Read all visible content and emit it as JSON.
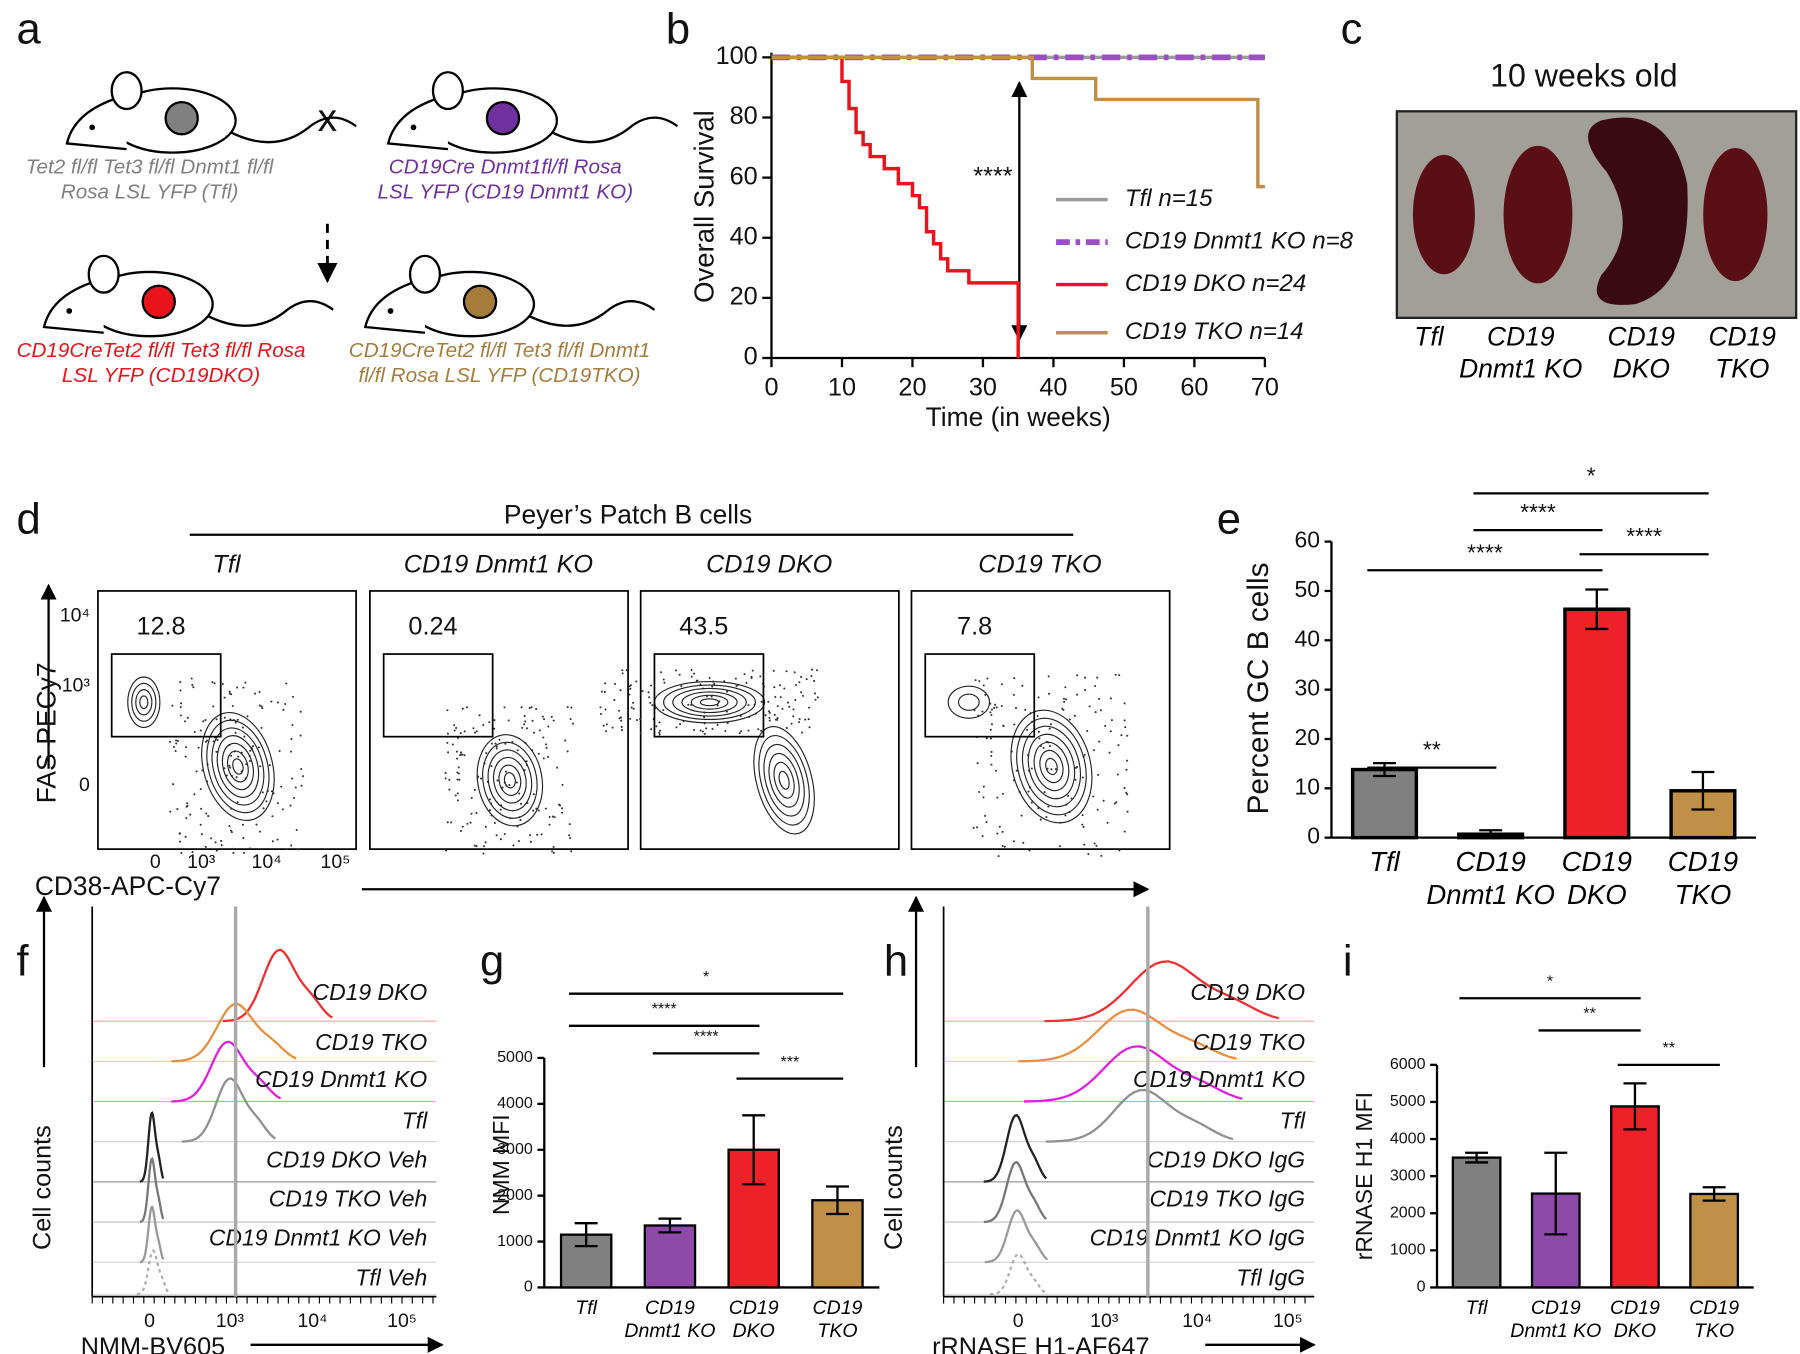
{
  "panel_labels": [
    "a",
    "b",
    "c",
    "d",
    "e",
    "f",
    "g",
    "h",
    "i"
  ],
  "panel_a": {
    "cross": "x",
    "mice": [
      {
        "label": "Tet2 fl/fl Tet3 fl/fl Dnmt1 fl/fl\nRosa LSL YFP (Tfl)",
        "color": "#808080"
      },
      {
        "label": "CD19Cre Dnmt1fl/fl Rosa\nLSL YFP (CD19 Dnmt1 KO)",
        "color": "#7030a0"
      },
      {
        "label": "CD19CreTet2 fl/fl Tet3 fl/fl Rosa\nLSL YFP (CD19DKO)",
        "color": "#e8131b"
      },
      {
        "label": "CD19CreTet2 fl/fl Tet3 fl/fl Dnmt1\nfl/fl Rosa LSL YFP (CD19TKO)",
        "color": "#a67c3d"
      }
    ]
  },
  "panel_c": {
    "title": "10 weeks old",
    "labels": [
      "Tfl",
      "CD19\nDnmt1 KO",
      "CD19\nDKO",
      "CD19\nTKO"
    ]
  },
  "panel_d": {
    "title": "Peyer’s Patch B cells",
    "groups": [
      "Tfl",
      "CD19 Dnmt1 KO",
      "CD19 DKO",
      "CD19 TKO"
    ],
    "gates": [
      12.8,
      0.24,
      43.5,
      7.8
    ],
    "ylabel": "FAS-PECy7",
    "xlabel": "CD38-APC-Cy7",
    "yticks": [
      "10⁴",
      "10³",
      "0"
    ],
    "xticks": [
      "0",
      "10³",
      "10⁴",
      "10⁵"
    ]
  },
  "panel_f": {
    "ylabel": "Cell counts",
    "xlabel": "NMM-BV605",
    "xticks": [
      "0",
      "10³",
      "10⁴",
      "10⁵"
    ],
    "traces": [
      {
        "label": "CD19 DKO",
        "color": "#e8131b",
        "line_color": "#f03030"
      },
      {
        "label": "CD19 TKO",
        "color": "#a67c3d",
        "line_color": "#e89040"
      },
      {
        "label": "CD19 Dnmt1 KO",
        "color": "#7030a0",
        "line_color": "#e020e0"
      },
      {
        "label": "Tfl",
        "color": "#909090",
        "line_color": "#909090"
      },
      {
        "label": "CD19 DKO Veh",
        "color": "#222222",
        "line_color": "#222222"
      },
      {
        "label": "CD19 TKO Veh",
        "color": "#808080",
        "line_color": "#777777"
      },
      {
        "label": "CD19 Dnmt1 KO Veh",
        "color": "#909090",
        "line_color": "#999999"
      },
      {
        "label": "Tfl Veh",
        "color": "#b0b0b0",
        "line_color": "#b0b0b0"
      }
    ]
  },
  "panel_h": {
    "ylabel": "Cell counts",
    "xlabel": "rRNASE H1-AF647",
    "xticks": [
      "0",
      "10³",
      "10⁴",
      "10⁵"
    ],
    "traces": [
      {
        "label": "CD19 DKO",
        "color": "#e8131b",
        "line_color": "#f03030"
      },
      {
        "label": "CD19 TKO",
        "color": "#a67c3d",
        "line_color": "#e89040"
      },
      {
        "label": "CD19 Dnmt1 KO",
        "color": "#7030a0",
        "line_color": "#e020e0"
      },
      {
        "label": "Tfl",
        "color": "#909090",
        "line_color": "#909090"
      },
      {
        "label": "CD19 DKO IgG",
        "color": "#222222",
        "line_color": "#222222"
      },
      {
        "label": "CD19 TKO IgG",
        "color": "#808080",
        "line_color": "#777777"
      },
      {
        "label": "CD19 Dnmt1 KO IgG",
        "color": "#909090",
        "line_color": "#999999"
      },
      {
        "label": "Tfl IgG",
        "color": "#b0b0b0",
        "line_color": "#b0b0b0"
      }
    ]
  },
  "chart_data": [
    {
      "type": "step",
      "xlabel": "Time (in weeks)",
      "ylabel": "Overall Survival",
      "xlim": [
        0,
        70
      ],
      "xticks": [
        0,
        10,
        20,
        30,
        40,
        50,
        60,
        70
      ],
      "ylim": [
        0,
        100
      ],
      "yticks": [
        0,
        20,
        40,
        60,
        80,
        100
      ],
      "annotation": "****",
      "series": [
        {
          "name": "Tfl n=15",
          "color": "#9a9a9a",
          "x": [
            0,
            70
          ],
          "values": [
            100,
            100
          ]
        },
        {
          "name": "CD19 Dnmt1 KO n=8",
          "color": "#9b4fc0",
          "linestyle": "dashdot",
          "x": [
            0,
            70
          ],
          "values": [
            100,
            100
          ]
        },
        {
          "name": "CD19 DKO n=24",
          "color": "#e8131b",
          "x": [
            0,
            10,
            11,
            12,
            13,
            14,
            16,
            18,
            20,
            21,
            22,
            23,
            24,
            25,
            28,
            35
          ],
          "values": [
            100,
            92,
            83,
            75,
            71,
            67,
            63,
            58,
            54,
            50,
            42,
            38,
            33,
            29,
            25,
            0
          ]
        },
        {
          "name": "CD19 TKO n=14",
          "color": "#c09048",
          "x": [
            0,
            37,
            46,
            69,
            70
          ],
          "values": [
            100,
            93,
            86,
            57,
            57
          ]
        }
      ]
    },
    {
      "type": "bar",
      "ylabel": "Percent GC B cells",
      "categories": [
        "Tfl",
        "CD19\nDnmt1 KO",
        "CD19\nDKO",
        "CD19\nTKO"
      ],
      "values": [
        13.8,
        0.7,
        46.3,
        9.5
      ],
      "errors": [
        1.3,
        0.8,
        4,
        3.8
      ],
      "colors": [
        "#808080",
        "#8e4aa8",
        "#ee2028",
        "#c09048"
      ],
      "ylim": [
        0,
        60
      ],
      "yticks": [
        0,
        10,
        20,
        30,
        40,
        50,
        60
      ],
      "annotations": [
        "**",
        "****",
        "****",
        "****",
        "*"
      ]
    },
    {
      "type": "bar",
      "ylabel": "NMM MFI",
      "categories": [
        "Tfl",
        "CD19\nDnmt1 KO",
        "CD19\nDKO",
        "CD19\nTKO"
      ],
      "values": [
        1150,
        1350,
        3000,
        1900
      ],
      "errors": [
        250,
        150,
        750,
        300
      ],
      "colors": [
        "#808080",
        "#8e4aa8",
        "#ee2028",
        "#c09048"
      ],
      "ylim": [
        0,
        5000
      ],
      "yticks": [
        0,
        1000,
        2000,
        3000,
        4000,
        5000
      ],
      "annotations": [
        "*",
        "****",
        "****",
        "***"
      ]
    },
    {
      "type": "bar",
      "ylabel": "rRNASE H1 MFI",
      "categories": [
        "Tfl",
        "CD19\nDnmt1 KO",
        "CD19\nDKO",
        "CD19\nTKO"
      ],
      "values": [
        3500,
        2530,
        4880,
        2520
      ],
      "errors": [
        130,
        1100,
        620,
        180
      ],
      "colors": [
        "#808080",
        "#8e4aa8",
        "#ee2028",
        "#c09048"
      ],
      "ylim": [
        0,
        6000
      ],
      "yticks": [
        0,
        1000,
        2000,
        3000,
        4000,
        5000,
        6000
      ],
      "annotations": [
        "*",
        "**",
        "**"
      ]
    }
  ]
}
